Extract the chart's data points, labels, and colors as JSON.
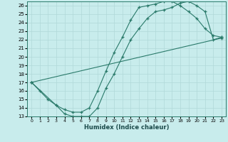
{
  "xlabel": "Humidex (Indice chaleur)",
  "bg_color": "#c8ecec",
  "grid_color": "#b0d8d8",
  "line_color": "#2a7a6a",
  "xlim": [
    -0.5,
    23.5
  ],
  "ylim": [
    13,
    26.5
  ],
  "xticks": [
    0,
    1,
    2,
    3,
    4,
    5,
    6,
    7,
    8,
    9,
    10,
    11,
    12,
    13,
    14,
    15,
    16,
    17,
    18,
    19,
    20,
    21,
    22,
    23
  ],
  "yticks": [
    13,
    14,
    15,
    16,
    17,
    18,
    19,
    20,
    21,
    22,
    23,
    24,
    25,
    26
  ],
  "line1_x": [
    0,
    1,
    2,
    3,
    4,
    5,
    6,
    7,
    8,
    9,
    10,
    11,
    12,
    13,
    14,
    15,
    16,
    17,
    18,
    19,
    20,
    21,
    22,
    23
  ],
  "line1_y": [
    17.0,
    16.0,
    15.0,
    14.3,
    13.3,
    13.0,
    13.0,
    13.0,
    14.0,
    16.3,
    18.0,
    20.0,
    22.0,
    23.3,
    24.5,
    25.3,
    25.5,
    25.8,
    26.3,
    26.5,
    26.0,
    25.3,
    22.0,
    22.3
  ],
  "line2_x": [
    0,
    3,
    4,
    5,
    6,
    7,
    8,
    9,
    10,
    11,
    12,
    13,
    14,
    15,
    16,
    17,
    18,
    19,
    20,
    21,
    22,
    23
  ],
  "line2_y": [
    17.0,
    14.3,
    13.8,
    13.5,
    13.5,
    14.0,
    16.0,
    18.3,
    20.5,
    22.3,
    24.3,
    25.8,
    26.0,
    26.2,
    26.5,
    26.5,
    26.0,
    25.3,
    24.5,
    23.3,
    22.5,
    22.3
  ],
  "line3_x": [
    0,
    23
  ],
  "line3_y": [
    17.0,
    22.2
  ]
}
